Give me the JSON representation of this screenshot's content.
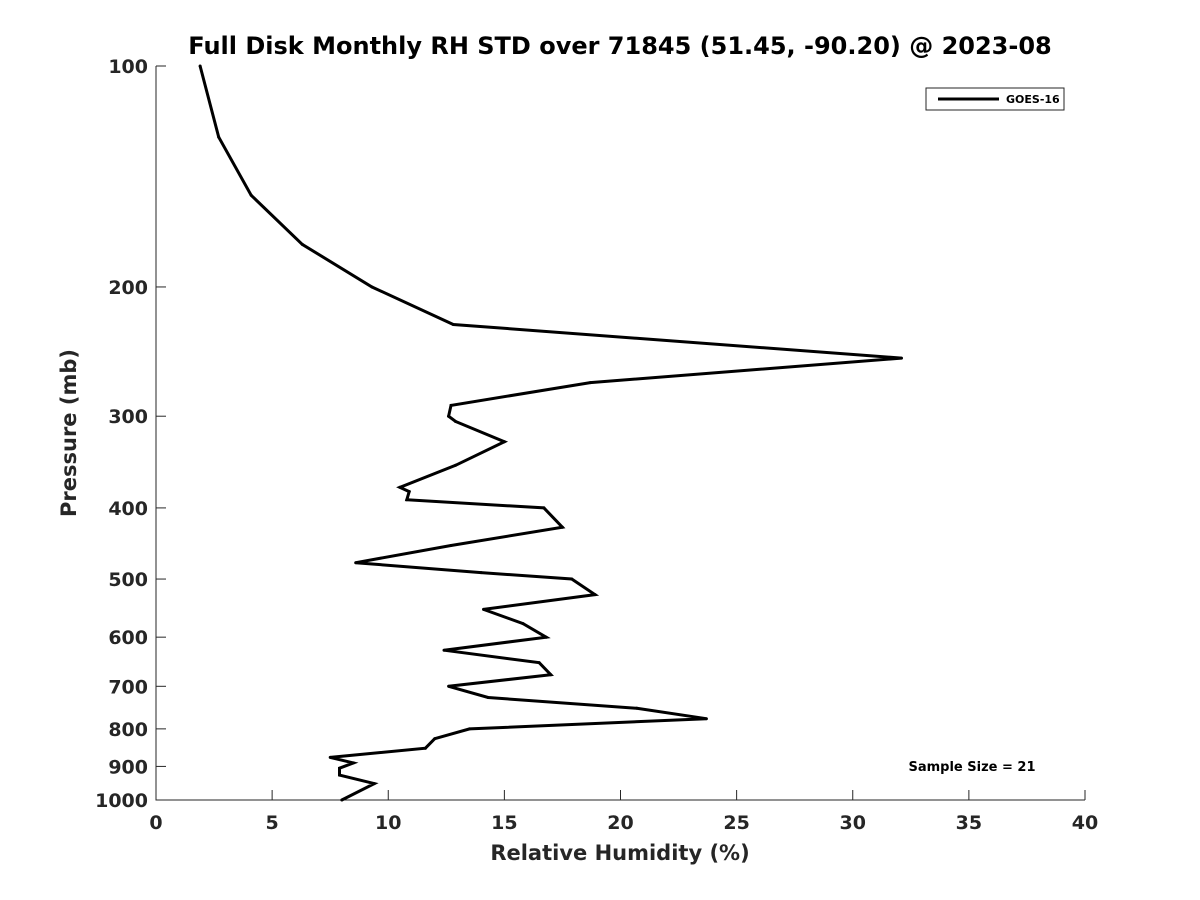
{
  "chart_data": {
    "type": "line",
    "title": "Full Disk Monthly RH STD over 71845 (51.45, -90.20) @ 2023-08",
    "xlabel": "Relative Humidity (%)",
    "ylabel": "Pressure (mb)",
    "xlim": [
      0,
      40
    ],
    "ylim": [
      100,
      1000
    ],
    "y_scale": "log",
    "y_reversed": true,
    "x_ticks": [
      "0",
      "5",
      "10",
      "15",
      "20",
      "25",
      "30",
      "35",
      "40"
    ],
    "y_ticks": [
      "100",
      "200",
      "300",
      "400",
      "500",
      "600",
      "700",
      "800",
      "900",
      "1000"
    ],
    "grid": false,
    "legend_position": "top-right",
    "series": [
      {
        "name": "GOES-16",
        "color": "#000000",
        "points": [
          [
            1.9,
            100
          ],
          [
            2.7,
            125
          ],
          [
            4.1,
            150
          ],
          [
            6.3,
            175
          ],
          [
            9.3,
            200
          ],
          [
            12.8,
            225
          ],
          [
            32.1,
            250
          ],
          [
            18.7,
            270
          ],
          [
            12.7,
            290
          ],
          [
            12.6,
            300
          ],
          [
            12.9,
            305
          ],
          [
            15.0,
            325
          ],
          [
            12.9,
            350
          ],
          [
            10.5,
            375
          ],
          [
            10.9,
            380
          ],
          [
            10.8,
            390
          ],
          [
            16.7,
            400
          ],
          [
            17.5,
            425
          ],
          [
            12.7,
            450
          ],
          [
            8.6,
            475
          ],
          [
            14.0,
            490
          ],
          [
            17.9,
            500
          ],
          [
            18.9,
            525
          ],
          [
            14.1,
            550
          ],
          [
            15.8,
            575
          ],
          [
            16.8,
            600
          ],
          [
            12.4,
            625
          ],
          [
            16.5,
            650
          ],
          [
            17.0,
            675
          ],
          [
            12.6,
            700
          ],
          [
            14.3,
            725
          ],
          [
            20.7,
            750
          ],
          [
            23.7,
            775
          ],
          [
            13.5,
            800
          ],
          [
            12.0,
            825
          ],
          [
            11.6,
            850
          ],
          [
            7.5,
            875
          ],
          [
            8.5,
            890
          ],
          [
            7.9,
            905
          ],
          [
            7.9,
            925
          ],
          [
            9.4,
            950
          ],
          [
            8.0,
            1000
          ]
        ]
      }
    ],
    "annotation": "Sample Size = 21"
  }
}
